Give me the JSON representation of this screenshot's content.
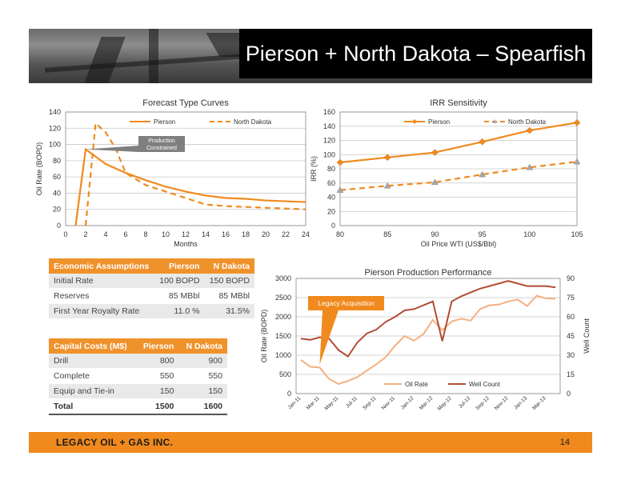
{
  "slide": {
    "title": "Pierson + North Dakota – Spearfish",
    "company": "LEGACY OIL + GAS INC.",
    "page_number": "14",
    "accent_color": "#f08a1e"
  },
  "econ_table": {
    "headers": [
      "Economic Assumptions",
      "Pierson",
      "N Dakota"
    ],
    "rows": [
      [
        "Initial Rate",
        "100 BOPD",
        "150 BOPD"
      ],
      [
        "Reserves",
        "85 MBbl",
        "85 MBbl"
      ],
      [
        "First Year Royalty Rate",
        "11.0 %",
        "31.5%"
      ]
    ]
  },
  "capex_table": {
    "headers": [
      "Capital Costs (M$)",
      "Pierson",
      "N Dakota"
    ],
    "rows": [
      [
        "Drill",
        "800",
        "900"
      ],
      [
        "Complete",
        "550",
        "550"
      ],
      [
        "Equip and Tie-in",
        "150",
        "150"
      ]
    ],
    "total": [
      "Total",
      "1500",
      "1600"
    ]
  },
  "chart_data": [
    {
      "type": "line",
      "title": "Forecast Type Curves",
      "xlabel": "Months",
      "ylabel": "Oil Rate (BOPD)",
      "xlim": [
        0,
        24
      ],
      "ylim": [
        0,
        140
      ],
      "xticks": [
        0,
        2,
        4,
        6,
        8,
        10,
        12,
        14,
        16,
        18,
        20,
        22,
        24
      ],
      "yticks": [
        0,
        20,
        40,
        60,
        80,
        100,
        120,
        140
      ],
      "legend_position": "top",
      "annotation": "Production Constrained",
      "annotation_lines": [
        "Production",
        "Constrained"
      ],
      "series": [
        {
          "name": "Pierson",
          "style": "solid",
          "color": "#f08a1e",
          "x": [
            1,
            2,
            3,
            4,
            6,
            8,
            10,
            12,
            14,
            16,
            18,
            20,
            22,
            24
          ],
          "y": [
            0,
            94,
            85,
            76,
            65,
            56,
            48,
            42,
            37,
            34,
            33,
            31,
            30,
            29
          ]
        },
        {
          "name": "North Dakota",
          "style": "dashed",
          "color": "#f08a1e",
          "x": [
            2,
            3,
            4,
            5,
            6,
            8,
            10,
            12,
            14,
            16,
            18,
            20,
            22,
            24
          ],
          "y": [
            0,
            126,
            115,
            95,
            65,
            50,
            42,
            34,
            26,
            24,
            23,
            22,
            21,
            20
          ]
        }
      ]
    },
    {
      "type": "line",
      "title": "IRR Sensitivity",
      "xlabel": "Oil Price WTI (US$/Bbl)",
      "ylabel": "IRR (%)",
      "xlim": [
        80,
        105
      ],
      "ylim": [
        0,
        160
      ],
      "xticks": [
        80,
        85,
        90,
        95,
        100,
        105
      ],
      "yticks": [
        0,
        20,
        40,
        60,
        80,
        100,
        120,
        140,
        160
      ],
      "legend_position": "top",
      "series": [
        {
          "name": "Pierson",
          "style": "solid",
          "marker": "diamond",
          "color": "#f08a1e",
          "x": [
            80,
            85,
            90,
            95,
            100,
            105
          ],
          "y": [
            89,
            96,
            103,
            118,
            134,
            145
          ]
        },
        {
          "name": "North Dakota",
          "style": "dashed",
          "marker": "triangle",
          "color": "#f08a1e",
          "x": [
            80,
            85,
            90,
            95,
            100,
            105
          ],
          "y": [
            50,
            56,
            61,
            72,
            82,
            90
          ]
        }
      ]
    },
    {
      "type": "line",
      "title": "Pierson Production Performance",
      "ylabel": "Oil Rate (BOPD)",
      "y2label": "Well Count",
      "ylim": [
        0,
        3000
      ],
      "y2lim": [
        0,
        90
      ],
      "yticks": [
        0,
        500,
        1000,
        1500,
        2000,
        2500,
        3000
      ],
      "y2ticks": [
        0,
        15,
        30,
        45,
        60,
        75,
        90
      ],
      "categories": [
        "Jan-11",
        "",
        "Mar-11",
        "",
        "May-11",
        "",
        "Jul-11",
        "",
        "Sep-11",
        "",
        "Nov-11",
        "",
        "Jan-12",
        "",
        "Mar-12",
        "",
        "May-12",
        "",
        "Jul-12",
        "",
        "Sep-12",
        "",
        "Nov-12",
        "",
        "Jan-13",
        "",
        "Mar-13",
        ""
      ],
      "legend_position": "bottom",
      "annotation": "Legacy Acquisition",
      "series": [
        {
          "name": "Oil Rate",
          "axis": "left",
          "color": "#f5b080",
          "values": [
            880,
            700,
            680,
            380,
            250,
            330,
            430,
            600,
            760,
            950,
            1250,
            1500,
            1380,
            1550,
            1920,
            1650,
            1880,
            1950,
            1900,
            2200,
            2300,
            2320,
            2400,
            2450,
            2280,
            2550,
            2480,
            2470
          ]
        },
        {
          "name": "Well Count",
          "axis": "right",
          "color": "#b34c36",
          "values": [
            43,
            42,
            44,
            43,
            34,
            29,
            40,
            47,
            50,
            56,
            60,
            65,
            66,
            69,
            72,
            41,
            72,
            76,
            79,
            82,
            84,
            86,
            88,
            86,
            84,
            84,
            84,
            83
          ]
        }
      ]
    }
  ]
}
